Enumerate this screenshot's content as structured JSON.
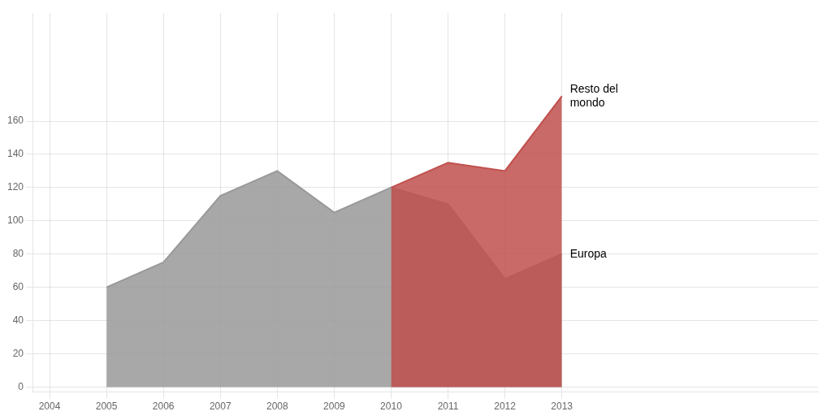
{
  "chart_data": {
    "type": "area",
    "x": [
      2005,
      2006,
      2007,
      2008,
      2009,
      2010,
      2011,
      2012,
      2013
    ],
    "series": [
      {
        "name": "Europa",
        "color": "#999999",
        "values": [
          60,
          75,
          115,
          130,
          105,
          120,
          110,
          65,
          80
        ]
      },
      {
        "name": "Resto del\nmondo",
        "color": "#c0504d",
        "values": [
          null,
          null,
          null,
          null,
          null,
          120,
          135,
          130,
          175
        ]
      }
    ],
    "xlim": [
      2003.7,
      2017.5
    ],
    "xticks": [
      2004,
      2005,
      2006,
      2007,
      2008,
      2009,
      2010,
      2011,
      2012,
      2013
    ],
    "ylim": [
      -3,
      225
    ],
    "yticks": [
      0,
      20,
      40,
      60,
      80,
      100,
      120,
      140,
      160
    ],
    "grid": true,
    "legend": false
  }
}
